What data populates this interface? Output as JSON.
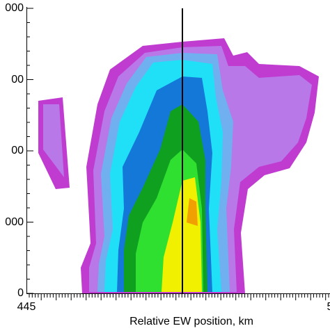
{
  "axes": {
    "y_tick_labels": [
      "000",
      "00",
      "00",
      "000",
      "0"
    ],
    "x_tick_labels": [
      "445",
      "5"
    ],
    "x_label": "Relative EW position, km"
  }
}
